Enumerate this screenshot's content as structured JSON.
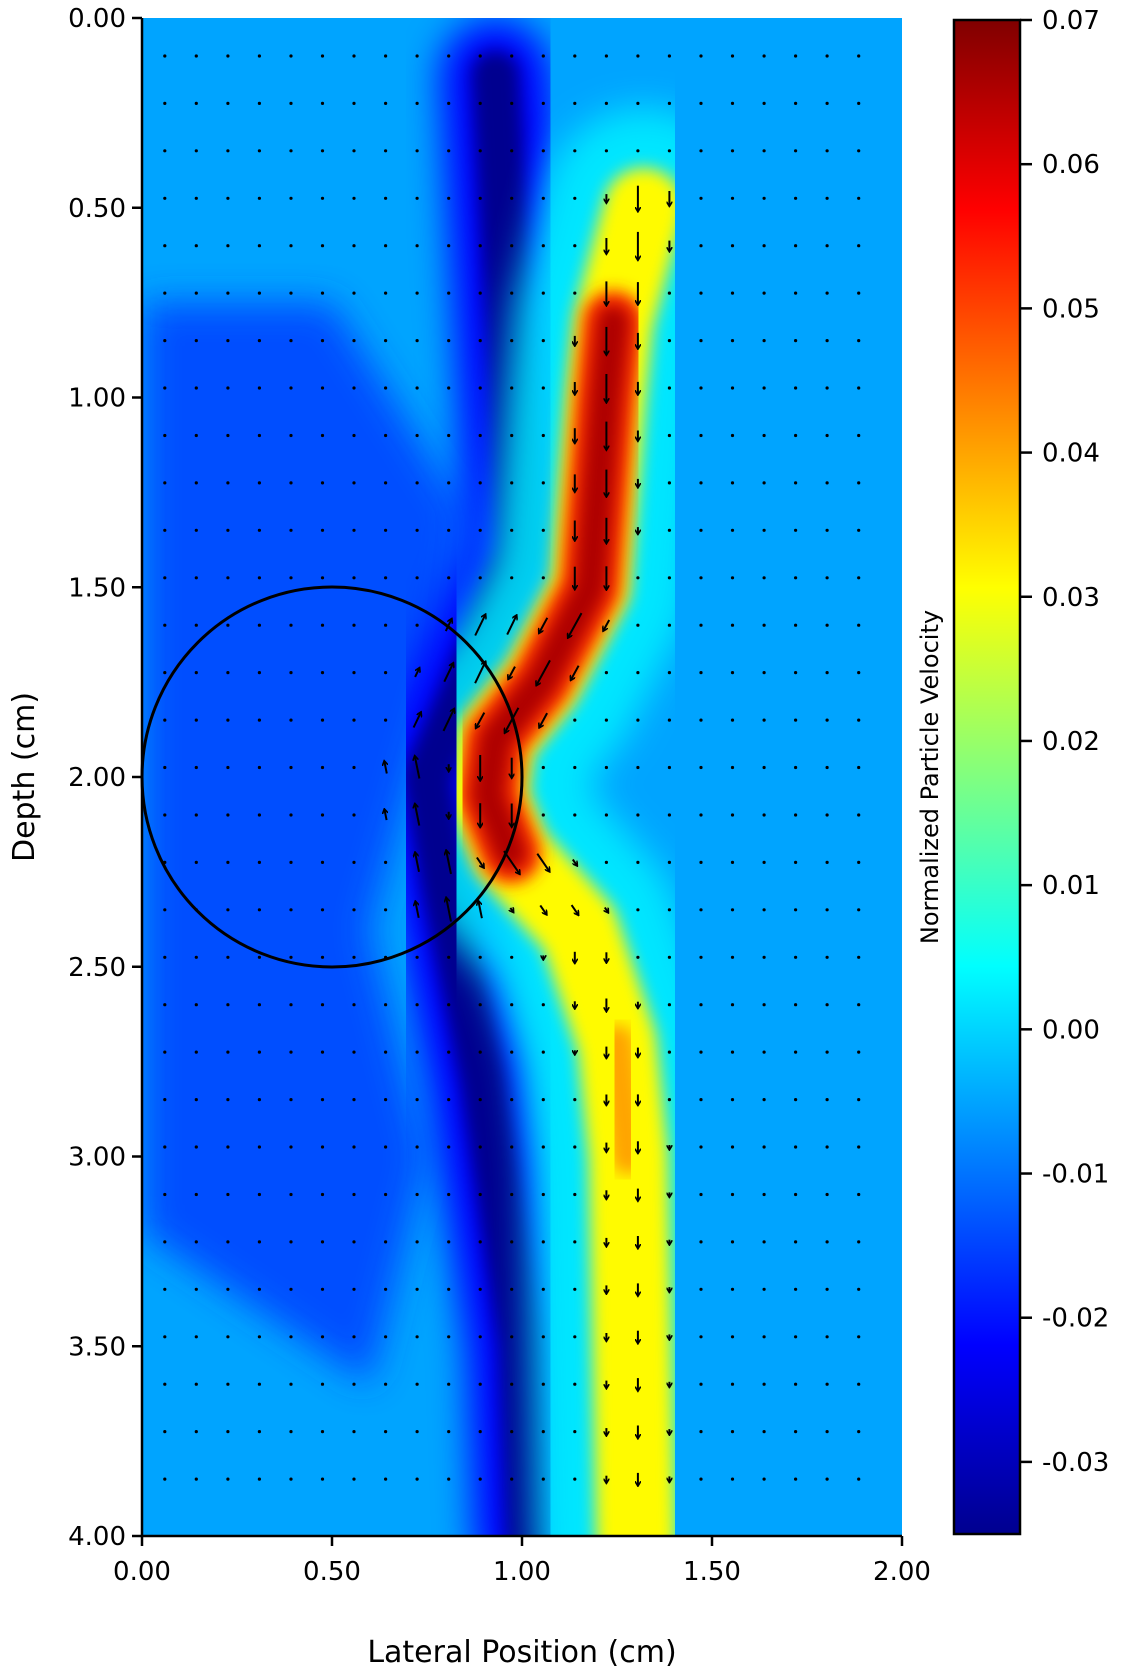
{
  "chart_data": {
    "type": "heatmap",
    "title": "",
    "xlabel": "Lateral Position (cm)",
    "ylabel": "Depth (cm)",
    "xlim": [
      0,
      2
    ],
    "ylim": [
      0,
      4
    ],
    "y_axis_inverted": true,
    "x_ticks": [
      "0.00",
      "0.50",
      "1.00",
      "1.50",
      "2.00"
    ],
    "y_ticks": [
      "0.00",
      "0.50",
      "1.00",
      "1.50",
      "2.00",
      "2.50",
      "3.00",
      "3.50",
      "4.00"
    ],
    "colorbar": {
      "label": "Normalized Particle Velocity",
      "range": [
        -0.035,
        0.07
      ],
      "ticks": [
        "-0.03",
        "-0.02",
        "-0.01",
        "0.00",
        "0.01",
        "0.02",
        "0.03",
        "0.04",
        "0.05",
        "0.06",
        "0.07"
      ],
      "colormap": "jet"
    },
    "overlay_circle": {
      "center_x": 0.5,
      "center_y": 2.0,
      "radius": 0.5
    },
    "vector_field": "quiver arrows of particle velocity on a regular grid",
    "features": {
      "positive_band_path": [
        {
          "y": 0.5,
          "x": 1.32
        },
        {
          "y": 0.8,
          "x": 1.24
        },
        {
          "y": 1.0,
          "x": 1.22
        },
        {
          "y": 1.5,
          "x": 1.18
        },
        {
          "y": 1.75,
          "x": 1.05
        },
        {
          "y": 1.9,
          "x": 0.93
        },
        {
          "y": 2.05,
          "x": 0.91
        },
        {
          "y": 2.2,
          "x": 0.97
        },
        {
          "y": 2.4,
          "x": 1.15
        },
        {
          "y": 2.7,
          "x": 1.25
        },
        {
          "y": 3.0,
          "x": 1.28
        },
        {
          "y": 3.5,
          "x": 1.29
        },
        {
          "y": 4.0,
          "x": 1.3
        }
      ],
      "positive_peak_value": 0.07,
      "negative_band_path": [
        {
          "y": 0.15,
          "x": 0.93
        },
        {
          "y": 0.5,
          "x": 0.95
        },
        {
          "y": 1.0,
          "x": 0.98
        },
        {
          "y": 1.4,
          "x": 1.0
        },
        {
          "y": 1.65,
          "x": 0.9
        },
        {
          "y": 2.0,
          "x": 0.75
        },
        {
          "y": 2.3,
          "x": 0.8
        },
        {
          "y": 2.8,
          "x": 0.9
        },
        {
          "y": 3.5,
          "x": 1.0
        },
        {
          "y": 4.0,
          "x": 1.02
        }
      ],
      "negative_peak_value": -0.035,
      "background_value": -0.005
    }
  }
}
